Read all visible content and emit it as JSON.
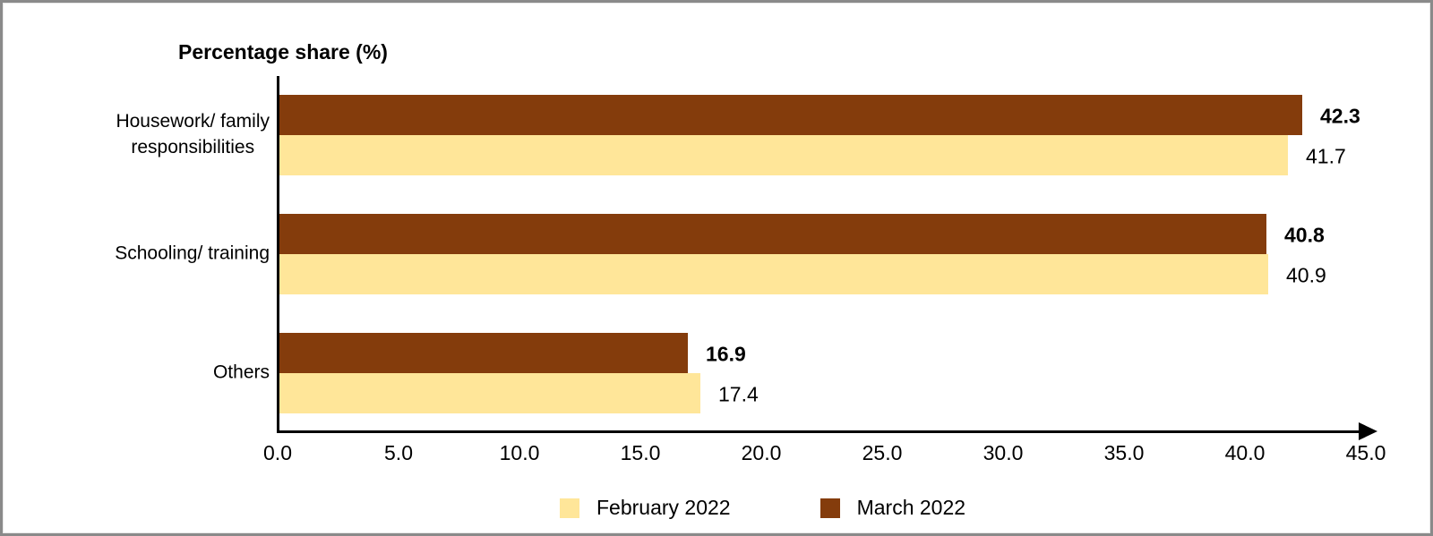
{
  "chart_data": {
    "type": "bar",
    "orientation": "horizontal",
    "title": "Percentage share (%)",
    "categories": [
      "Housework/ family responsibilities",
      "Schooling/ training",
      "Others"
    ],
    "category_lines": [
      [
        "Housework/ family",
        "responsibilities"
      ],
      [
        "Schooling/ training"
      ],
      [
        "Others"
      ]
    ],
    "series": [
      {
        "name": "March 2022",
        "color": "#843C0C",
        "values": [
          42.3,
          40.8,
          16.9
        ],
        "value_labels": [
          "42.3",
          "40.8",
          "16.9"
        ],
        "labels_bold": true
      },
      {
        "name": "February 2022",
        "color": "#FFE699",
        "values": [
          41.7,
          40.9,
          17.4
        ],
        "value_labels": [
          "41.7",
          "40.9",
          "17.4"
        ],
        "labels_bold": false
      }
    ],
    "legend": [
      {
        "label": "February 2022",
        "color": "#FFE699"
      },
      {
        "label": "March 2022",
        "color": "#843C0C"
      }
    ],
    "legend_position": "bottom",
    "grid": false,
    "xlim": [
      0,
      45
    ],
    "x_tick_values": [
      0,
      5,
      10,
      15,
      20,
      25,
      30,
      35,
      40,
      45
    ],
    "x_tick_labels": [
      "0.0",
      "5.0",
      "10.0",
      "15.0",
      "20.0",
      "25.0",
      "30.0",
      "35.0",
      "40.0",
      "45.0"
    ],
    "axis_color": "#000000"
  }
}
